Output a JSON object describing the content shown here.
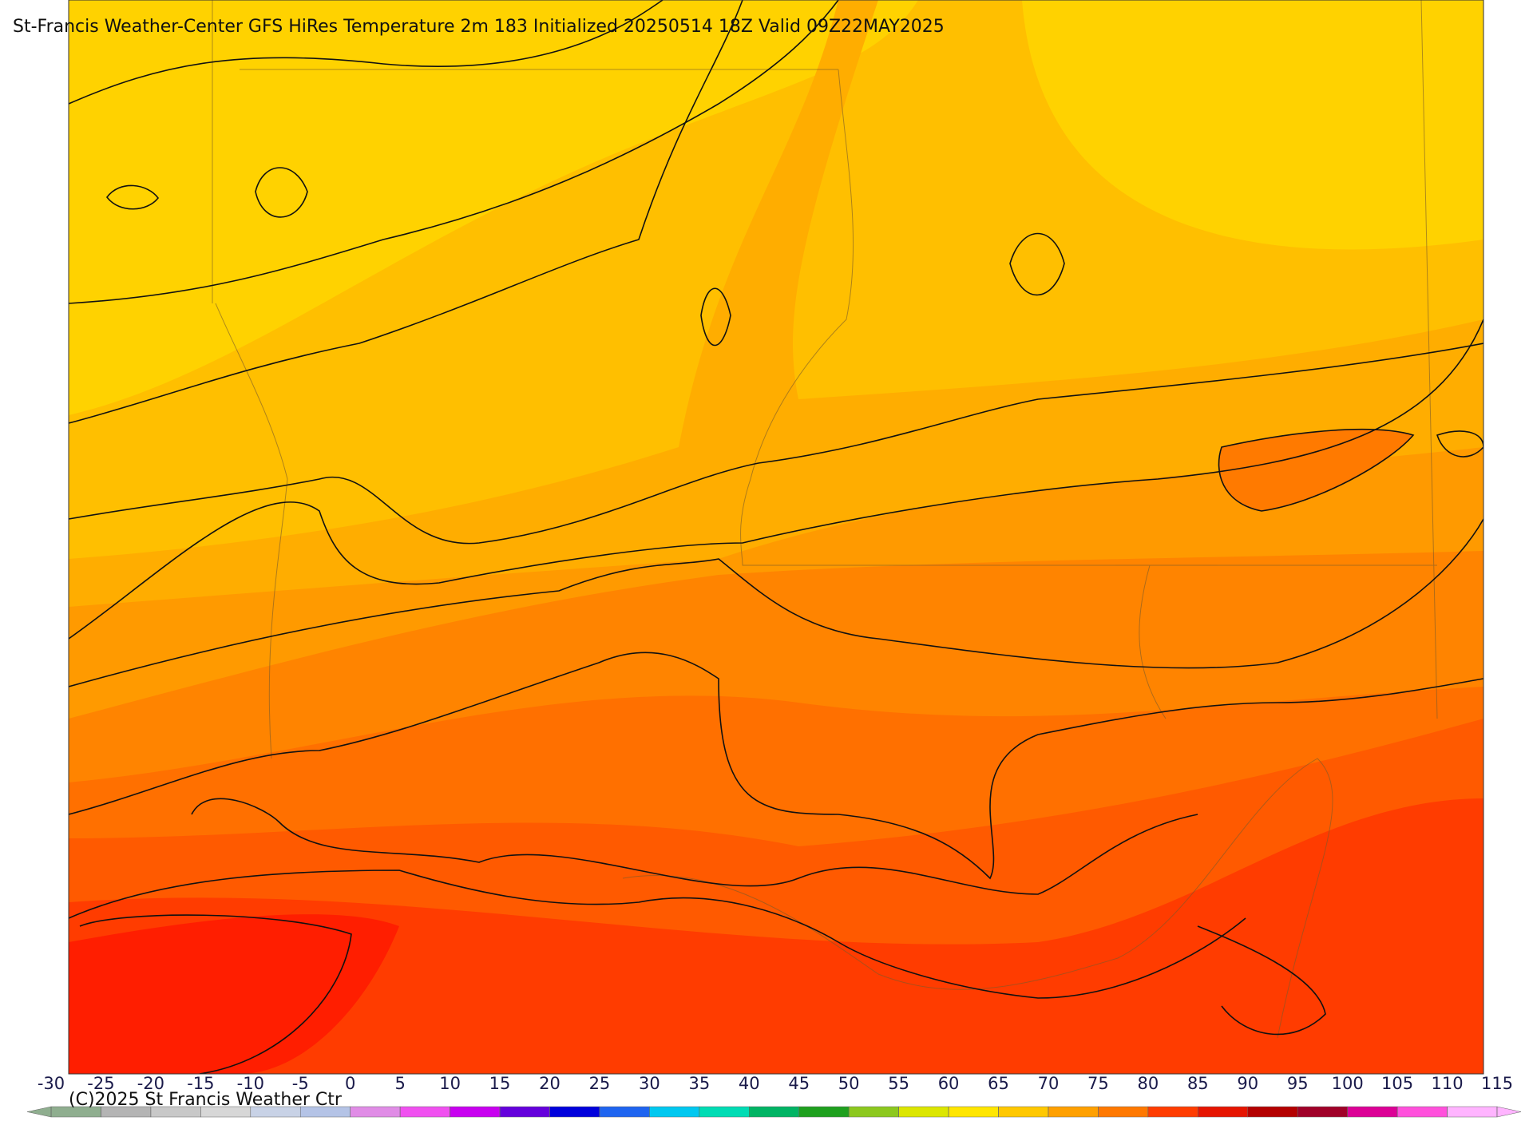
{
  "header": {
    "title": "St-Francis Weather-Center GFS HiRes Temperature 2m  183 Initialized 20250514 18Z Valid 09Z22MAY2025"
  },
  "footer": {
    "copyright": "(C)2025 St Francis Weather Ctr"
  },
  "colorbar": {
    "ticks": [
      -30,
      -25,
      -20,
      -15,
      -10,
      -5,
      0,
      5,
      10,
      15,
      20,
      25,
      30,
      35,
      40,
      45,
      50,
      55,
      60,
      65,
      70,
      75,
      80,
      85,
      90,
      95,
      100,
      105,
      110,
      115
    ],
    "colors": [
      "#8fae8f",
      "#b4b4b4",
      "#c8c8c8",
      "#d7d7d7",
      "#c8d2e6",
      "#b4c3e6",
      "#e08ce6",
      "#f050f0",
      "#c800f0",
      "#6400dc",
      "#0000dc",
      "#1e64f0",
      "#00c8f0",
      "#00dcb4",
      "#00b464",
      "#1ea01e",
      "#8cc81e",
      "#dce600",
      "#ffe600",
      "#ffc800",
      "#ffa000",
      "#ff7800",
      "#ff3c00",
      "#e61400",
      "#b40000",
      "#a00028",
      "#dc0096",
      "#ff50dc",
      "#ffb4ff"
    ]
  }
}
